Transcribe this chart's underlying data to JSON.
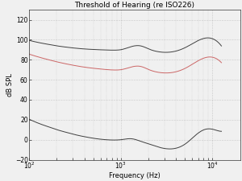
{
  "title": "Threshold of Hearing (re ISO226)",
  "xlabel": "Frequency (Hz)",
  "ylabel": "dB SPL",
  "xlim_log": [
    2.0,
    4.301
  ],
  "ylim": [
    -20,
    130
  ],
  "yticks": [
    -20,
    0,
    20,
    40,
    60,
    80,
    100,
    120
  ],
  "curve_color_bottom": "#404040",
  "curve_color_middle": "#cc6666",
  "curve_color_top": "#404040",
  "background_color": "#f0f0f0",
  "grid_color": "#888888",
  "title_fontsize": 6.5,
  "label_fontsize": 6,
  "tick_fontsize": 5.5
}
